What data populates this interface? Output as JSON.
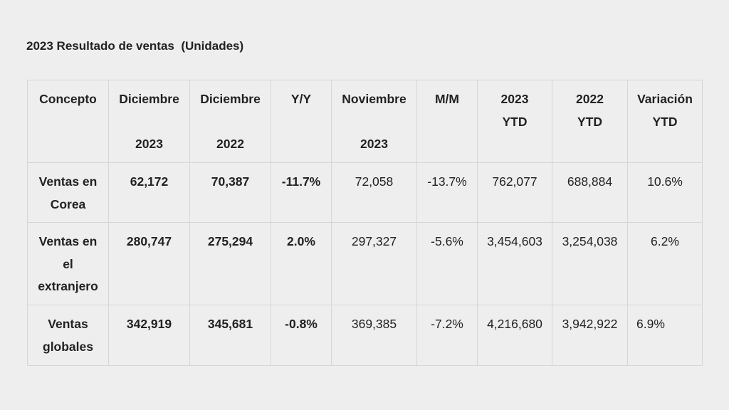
{
  "title": "2023 Resultado de ventas  (Unidades)",
  "headers": {
    "concepto": "Concepto",
    "dic2023_a": "Diciembre",
    "dic2023_b": "2023",
    "dic2022_a": "Diciembre",
    "dic2022_b": "2022",
    "yy": "Y/Y",
    "nov2023_a": "Noviembre",
    "nov2023_b": "2023",
    "mm": "M/M",
    "ytd2023_a": "2023",
    "ytd2023_b": "YTD",
    "ytd2022_a": "2022",
    "ytd2022_b": "YTD",
    "var_a": "Variación",
    "var_b": "YTD"
  },
  "rows": [
    {
      "concepto_lines": [
        "Ventas en",
        "Corea"
      ],
      "dic2023": "62,172",
      "dic2022": "70,387",
      "yy": "-11.7%",
      "nov2023": "72,058",
      "mm": "-13.7%",
      "ytd2023": "762,077",
      "ytd2022": "688,884",
      "var": "10.6%"
    },
    {
      "concepto_lines": [
        "Ventas en",
        "el",
        "extranjero"
      ],
      "dic2023": "280,747",
      "dic2022": "275,294",
      "yy": "2.0%",
      "nov2023": "297,327",
      "mm": "-5.6%",
      "ytd2023": "3,454,603",
      "ytd2022": "3,254,038",
      "var": "6.2%"
    },
    {
      "concepto_lines": [
        "Ventas",
        "globales"
      ],
      "dic2023": "342,919",
      "dic2022": "345,681",
      "yy": "-0.8%",
      "nov2023": "369,385",
      "mm": "-7.2%",
      "ytd2023": "4,216,680",
      "ytd2022": "3,942,922",
      "var": "6.9%"
    }
  ]
}
